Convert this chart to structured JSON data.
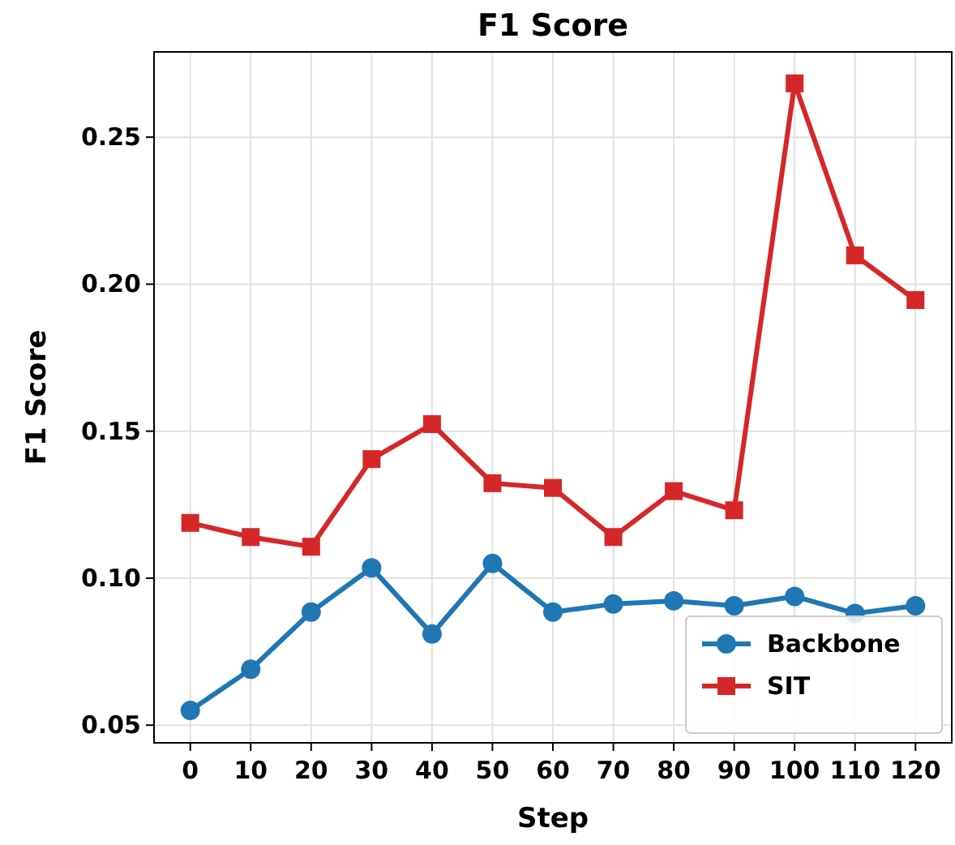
{
  "chart_data": {
    "type": "line",
    "title": "F1 Score",
    "xlabel": "Step",
    "ylabel": "F1 Score",
    "x": [
      0,
      10,
      20,
      30,
      40,
      50,
      60,
      70,
      80,
      90,
      100,
      110,
      120
    ],
    "series": [
      {
        "name": "Backbone",
        "color": "#1f77b4",
        "marker": "circle",
        "values": [
          0.055,
          0.069,
          0.0885,
          0.1035,
          0.081,
          0.105,
          0.0885,
          0.0912,
          0.0923,
          0.0906,
          0.0938,
          0.088,
          0.0906
        ]
      },
      {
        "name": "SIT",
        "color": "#d62728",
        "marker": "square",
        "values": [
          0.1188,
          0.114,
          0.1107,
          0.1405,
          0.1524,
          0.1323,
          0.1307,
          0.114,
          0.1296,
          0.1231,
          0.2683,
          0.2098,
          0.1946
        ]
      }
    ],
    "xlim": [
      -6,
      126
    ],
    "ylim": [
      0.044,
      0.279
    ],
    "xticks": [
      0,
      10,
      20,
      30,
      40,
      50,
      60,
      70,
      80,
      90,
      100,
      110,
      120
    ],
    "yticks": [
      {
        "value": 0.05,
        "label": "0.05"
      },
      {
        "value": 0.1,
        "label": "0.10"
      },
      {
        "value": 0.15,
        "label": "0.15"
      },
      {
        "value": 0.2,
        "label": "0.20"
      },
      {
        "value": 0.25,
        "label": "0.25"
      }
    ],
    "grid": true,
    "legend": "bottom right",
    "line_style": "solid"
  }
}
